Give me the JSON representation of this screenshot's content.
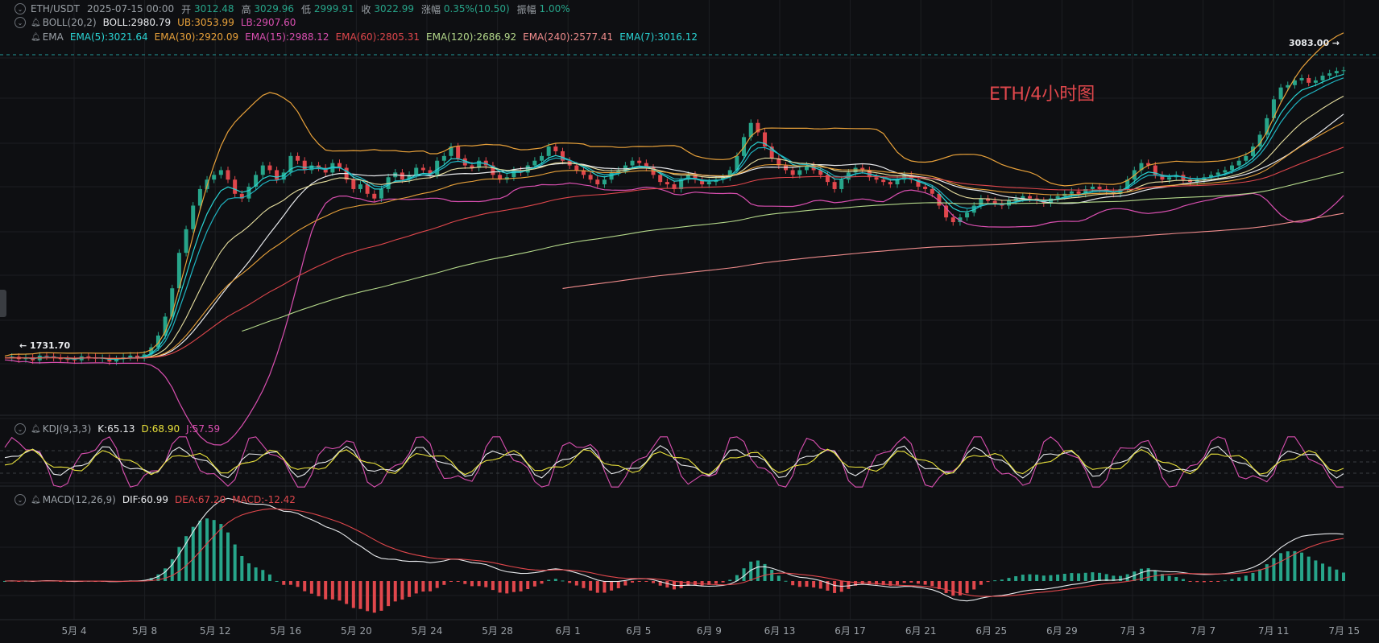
{
  "header": {
    "symbol": "ETH/USDT",
    "datetime": "2025-07-15 00:00",
    "open_label": "开",
    "open": "3012.48",
    "high_label": "高",
    "high": "3029.96",
    "low_label": "低",
    "low": "2999.91",
    "close_label": "收",
    "close": "3022.99",
    "change_label": "涨幅",
    "change": "0.35%(10.50)",
    "amp_label": "振幅",
    "amp": "1.00%"
  },
  "indicators": {
    "boll": {
      "name": "BOLL(20,2)",
      "boll": "BOLL:2980.79",
      "ub": "UB:3053.99",
      "lb": "LB:2907.60"
    },
    "ema": {
      "name": "EMA",
      "ema5": "EMA(5):3021.64",
      "ema30": "EMA(30):2920.09",
      "ema15": "EMA(15):2988.12",
      "ema60": "EMA(60):2805.31",
      "ema120": "EMA(120):2686.92",
      "ema240": "EMA(240):2577.41",
      "ema7": "EMA(7):3016.12"
    },
    "kdj": {
      "name": "KDJ(9,3,3)",
      "k": "K:65.13",
      "d": "D:68.90",
      "j": "J:57.59"
    },
    "macd": {
      "name": "MACD(12,26,9)",
      "dif": "DIF:60.99",
      "dea": "DEA:67.20",
      "macd": "MACD:-12.42"
    }
  },
  "annotations": {
    "title": "ETH/4小时图",
    "high_marker": "3083.00",
    "low_marker": "1731.70"
  },
  "colors": {
    "bg": "#0e0f12",
    "up": "#27a58a",
    "down": "#e0474c",
    "white": "#e8eaed",
    "ema5": "#2ad4d4",
    "ema30": "#e8a13a",
    "ema15": "#d94fb0",
    "ema60": "#e0474c",
    "ema120": "#b4d88a",
    "ema240": "#f08c8c",
    "ema7": "#2ad4d4",
    "boll": "#e8eaed",
    "ub": "#e8a13a",
    "lb": "#d94fb0",
    "k": "#e8eaed",
    "d": "#e8e03a",
    "j": "#d94fb0",
    "title": "#e0474c"
  },
  "chart_data": {
    "type": "line",
    "x_ticks": [
      "5月 4",
      "5月 8",
      "5月 12",
      "5月 16",
      "5月 20",
      "5月 24",
      "5月 28",
      "6月 1",
      "6月 5",
      "6月 9",
      "6月 13",
      "6月 17",
      "6月 21",
      "6月 25",
      "6月 29",
      "7月 3",
      "7月 7",
      "7月 11",
      "7月 15"
    ],
    "ylim": [
      1600,
      3150
    ],
    "price_close": [
      1805,
      1810,
      1800,
      1808,
      1795,
      1815,
      1812,
      1806,
      1800,
      1798,
      1795,
      1812,
      1808,
      1802,
      1805,
      1790,
      1800,
      1808,
      1815,
      1805,
      1820,
      1850,
      1900,
      1980,
      2100,
      2250,
      2350,
      2450,
      2520,
      2560,
      2580,
      2600,
      2560,
      2500,
      2480,
      2530,
      2580,
      2620,
      2600,
      2560,
      2590,
      2660,
      2640,
      2600,
      2620,
      2610,
      2590,
      2630,
      2610,
      2560,
      2520,
      2540,
      2500,
      2480,
      2520,
      2570,
      2590,
      2560,
      2580,
      2610,
      2600,
      2580,
      2640,
      2660,
      2700,
      2650,
      2620,
      2610,
      2640,
      2620,
      2580,
      2560,
      2570,
      2600,
      2590,
      2620,
      2640,
      2660,
      2700,
      2680,
      2640,
      2620,
      2600,
      2580,
      2560,
      2540,
      2560,
      2590,
      2600,
      2620,
      2640,
      2630,
      2610,
      2580,
      2550,
      2540,
      2520,
      2560,
      2580,
      2560,
      2540,
      2550,
      2560,
      2570,
      2600,
      2660,
      2740,
      2800,
      2760,
      2700,
      2650,
      2620,
      2600,
      2580,
      2600,
      2620,
      2600,
      2580,
      2550,
      2520,
      2560,
      2590,
      2610,
      2600,
      2570,
      2560,
      2550,
      2540,
      2560,
      2580,
      2560,
      2530,
      2520,
      2500,
      2450,
      2400,
      2380,
      2400,
      2420,
      2450,
      2480,
      2470,
      2460,
      2450,
      2470,
      2480,
      2490,
      2480,
      2470,
      2460,
      2480,
      2490,
      2500,
      2510,
      2500,
      2520,
      2530,
      2520,
      2510,
      2500,
      2520,
      2560,
      2600,
      2630,
      2620,
      2580,
      2560,
      2570,
      2580,
      2560,
      2550,
      2560,
      2570,
      2580,
      2590,
      2600,
      2620,
      2640,
      2660,
      2700,
      2750,
      2820,
      2900,
      2950,
      2960,
      2980,
      2990,
      2970,
      2980,
      3000,
      3010,
      3020,
      3022.99
    ],
    "kdj": {
      "k": [
        65.13
      ],
      "d": [
        68.9
      ],
      "j": [
        57.59
      ]
    },
    "macd": {
      "dif": [
        60.99
      ],
      "dea": [
        67.2
      ],
      "hist": [
        -12.42
      ]
    }
  }
}
